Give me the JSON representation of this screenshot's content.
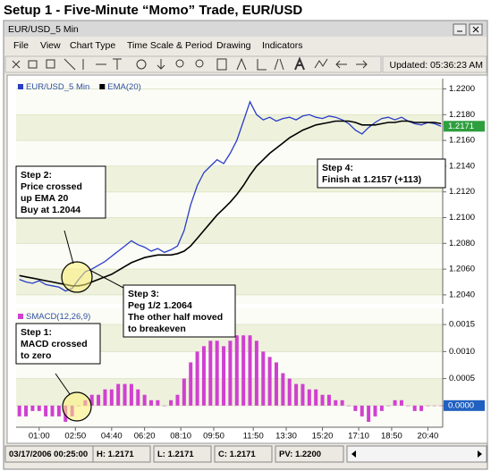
{
  "heading": "Setup 1 - Five-Minute “Momo” Trade, EUR/USD",
  "window": {
    "title": "EUR/USD_5 Min",
    "menu": [
      "File",
      "View",
      "Chart Type",
      "Time Scale & Period",
      "Drawing",
      "Indicators"
    ],
    "updated": "Updated: 05:36:23 AM",
    "status": [
      "03/17/2006 00:25:00",
      "H: 1.2171",
      "L: 1.2171",
      "C: 1.2171",
      "PV: 1.2200"
    ]
  },
  "chart_data": [
    {
      "type": "line",
      "x": [
        0,
        20,
        40,
        60,
        80,
        100,
        120,
        140,
        160,
        180,
        200,
        220,
        240,
        260,
        280,
        300,
        320,
        340,
        360,
        380,
        400,
        420,
        440,
        460,
        480,
        500,
        520,
        540,
        560,
        580,
        600,
        620,
        640,
        660,
        680,
        700,
        720,
        740,
        760,
        780,
        800,
        820,
        840,
        860,
        880,
        900,
        920,
        940,
        960,
        980,
        1000,
        1020,
        1040,
        1060,
        1080,
        1100,
        1120,
        1140,
        1160,
        1180,
        1200,
        1220,
        1240,
        1260,
        1280
      ],
      "xlim": [
        -10,
        1285
      ],
      "ylim": [
        1.2033,
        1.2208
      ],
      "yticks": [
        {
          "value": 1.204,
          "label": "1.2040"
        },
        {
          "value": 1.206,
          "label": "1.2060"
        },
        {
          "value": 1.208,
          "label": "1.2080"
        },
        {
          "value": 1.21,
          "label": "1.2100"
        },
        {
          "value": 1.212,
          "label": "1.2120"
        },
        {
          "value": 1.214,
          "label": "1.2140"
        },
        {
          "value": 1.216,
          "label": "1.2160"
        },
        {
          "value": 1.218,
          "label": "1.2180"
        },
        {
          "value": 1.22,
          "label": "1.2200"
        }
      ],
      "last_label": "1.2171",
      "series": [
        {
          "name": "EUR/USD_5 Min",
          "color": "#2a3cc8",
          "values": [
            1.2052,
            1.205,
            1.2049,
            1.2051,
            1.2048,
            1.2047,
            1.2046,
            1.2043,
            1.2045,
            1.2052,
            1.2058,
            1.206,
            1.2063,
            1.2066,
            1.207,
            1.2074,
            1.2078,
            1.2082,
            1.2079,
            1.2077,
            1.2074,
            1.2076,
            1.2073,
            1.2075,
            1.2078,
            1.209,
            1.211,
            1.2125,
            1.2135,
            1.214,
            1.2145,
            1.2142,
            1.215,
            1.216,
            1.2175,
            1.219,
            1.218,
            1.2176,
            1.2178,
            1.2175,
            1.2177,
            1.2178,
            1.2176,
            1.2179,
            1.218,
            1.2178,
            1.2177,
            1.2179,
            1.2178,
            1.2176,
            1.2173,
            1.2168,
            1.2165,
            1.217,
            1.2174,
            1.2177,
            1.2178,
            1.2176,
            1.2178,
            1.2175,
            1.2173,
            1.2172,
            1.2174,
            1.2173,
            1.2171
          ]
        },
        {
          "name": "EMA(20)",
          "color": "#000000",
          "values": [
            1.2055,
            1.2054,
            1.2053,
            1.2052,
            1.2051,
            1.205,
            1.2049,
            1.2048,
            1.2047,
            1.2047,
            1.2048,
            1.205,
            1.2052,
            1.2054,
            1.2056,
            1.2059,
            1.2062,
            1.2065,
            1.2067,
            1.2069,
            1.207,
            1.2071,
            1.2071,
            1.2071,
            1.2072,
            1.2074,
            1.2078,
            1.2084,
            1.209,
            1.2096,
            1.2102,
            1.2107,
            1.2112,
            1.2118,
            1.2125,
            1.2133,
            1.214,
            1.2145,
            1.215,
            1.2154,
            1.2158,
            1.2162,
            1.2165,
            1.2168,
            1.217,
            1.2172,
            1.2173,
            1.2174,
            1.2175,
            1.2175,
            1.2175,
            1.2174,
            1.2172,
            1.2172,
            1.2172,
            1.2173,
            1.2174,
            1.2174,
            1.2175,
            1.2175,
            1.2174,
            1.2174,
            1.2174,
            1.2174,
            1.2173
          ]
        }
      ],
      "annotations": [
        {
          "lines": [
            "Step 2:",
            "Price crossed",
            "up EMA 20",
            "Buy at 1.2044"
          ]
        },
        {
          "lines": [
            "Step 3:",
            "Peg 1/2 1.2064",
            "The other half moved",
            "to breakeven"
          ]
        },
        {
          "lines": [
            "Step 4:",
            "Finish at 1.2157 (+113)"
          ]
        }
      ]
    },
    {
      "type": "bar",
      "ylim": [
        -0.0004,
        0.0018
      ],
      "yticks": [
        {
          "value": 0,
          "label": "0.0000"
        },
        {
          "value": 0.0005,
          "label": "0.0005"
        },
        {
          "value": 0.001,
          "label": "0.0010"
        },
        {
          "value": 0.0015,
          "label": "0.0015"
        }
      ],
      "xticks": [
        {
          "value": 60,
          "label": "01:00"
        },
        {
          "value": 170,
          "label": "02:50"
        },
        {
          "value": 280,
          "label": "04:40"
        },
        {
          "value": 380,
          "label": "06:20"
        },
        {
          "value": 490,
          "label": "08:10"
        },
        {
          "value": 590,
          "label": "09:50"
        },
        {
          "value": 710,
          "label": "11:50"
        },
        {
          "value": 810,
          "label": "13:30"
        },
        {
          "value": 920,
          "label": "15:20"
        },
        {
          "value": 1030,
          "label": "17:10"
        },
        {
          "value": 1130,
          "label": "18:50"
        },
        {
          "value": 1240,
          "label": "20:40"
        }
      ],
      "last_label": "0.0000",
      "series": [
        {
          "name": "SMACD(12,26,9)",
          "color": "#d040d0",
          "values": [
            -0.0002,
            -0.0002,
            -0.0001,
            -0.0001,
            -0.0002,
            -0.0002,
            -0.0002,
            -0.0003,
            -0.0002,
            0,
            0.0001,
            0.0002,
            0.0002,
            0.0003,
            0.0003,
            0.0004,
            0.0004,
            0.0004,
            0.0003,
            0.0002,
            0.0001,
            0.0001,
            0,
            0.0001,
            0.0002,
            0.0005,
            0.0008,
            0.001,
            0.0011,
            0.0012,
            0.0012,
            0.0011,
            0.0012,
            0.0013,
            0.0013,
            0.0013,
            0.0012,
            0.001,
            0.0009,
            0.0008,
            0.0006,
            0.0005,
            0.0004,
            0.0004,
            0.0003,
            0.0003,
            0.0002,
            0.0002,
            0.0001,
            0.0001,
            0,
            -0.0001,
            -0.0002,
            -0.0003,
            -0.0002,
            -0.0001,
            0,
            0.0001,
            0.0001,
            0,
            -0.0001,
            -0.0001,
            0,
            0,
            0
          ]
        }
      ],
      "annotations": [
        {
          "lines": [
            "Step 1:",
            "MACD crossed",
            "to zero"
          ]
        }
      ]
    }
  ]
}
